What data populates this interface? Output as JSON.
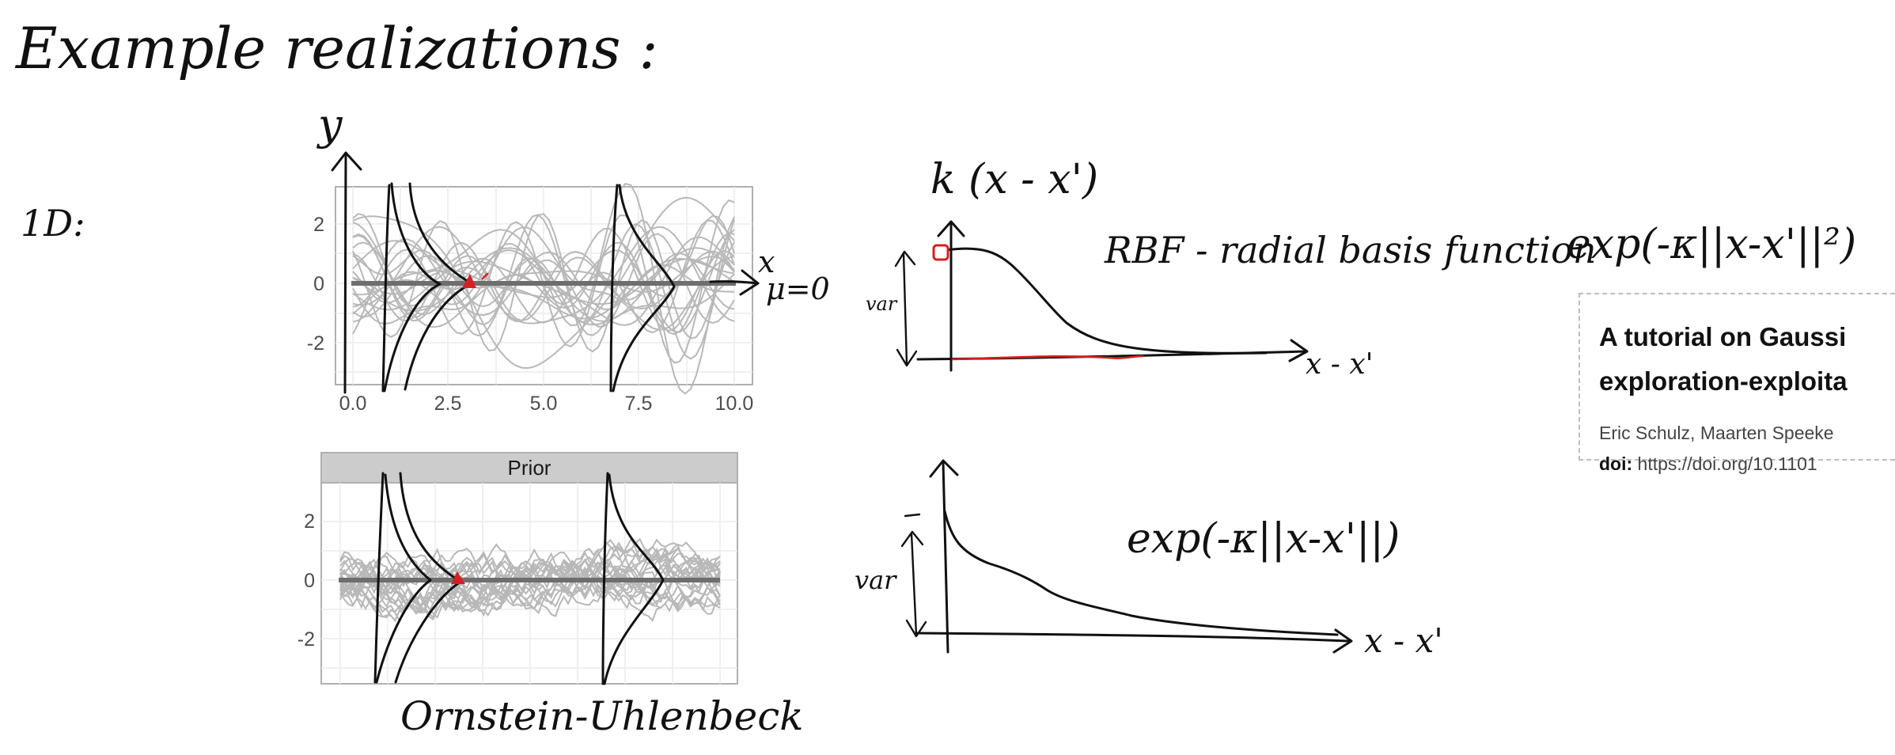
{
  "heading": "Example realizations :",
  "dimension_label": "1D:",
  "top_panel": {
    "axis_label_y": "y",
    "axis_label_x": "x",
    "mean_label": "μ=0",
    "x_ticks": [
      "0.0",
      "2.5",
      "5.0",
      "7.5",
      "10.0"
    ],
    "y_ticks": [
      "2",
      "0",
      "-2"
    ]
  },
  "bottom_panel": {
    "strip_title": "Prior",
    "y_ticks": [
      "2",
      "0",
      "-2"
    ],
    "caption": "Ornstein-Uhlenbeck"
  },
  "rbf_kernel": {
    "title": "k (x - x')",
    "name": "RBF - radial basis function",
    "formula": "exp(-κ||x-x'||²)",
    "var_label": "var",
    "x_label": "x - x'"
  },
  "ou_kernel": {
    "formula": "exp(-κ||x-x'||)",
    "var_label": "var",
    "x_label": "x - x'"
  },
  "paper": {
    "title_line1": "A tutorial on Gaussi",
    "title_line2": "exploration-exploita",
    "authors": "Eric Schulz, Maarten Speeke",
    "doi_label": "doi:",
    "doi_value": "https://doi.org/10.1101"
  },
  "colors": {
    "ink": "#111111",
    "annotation_red": "#d42020",
    "sample_gray": "#b8b8b8",
    "mean_line": "#6e6e6e",
    "plot_border": "#b0b0b0",
    "strip": "#cccccc"
  }
}
